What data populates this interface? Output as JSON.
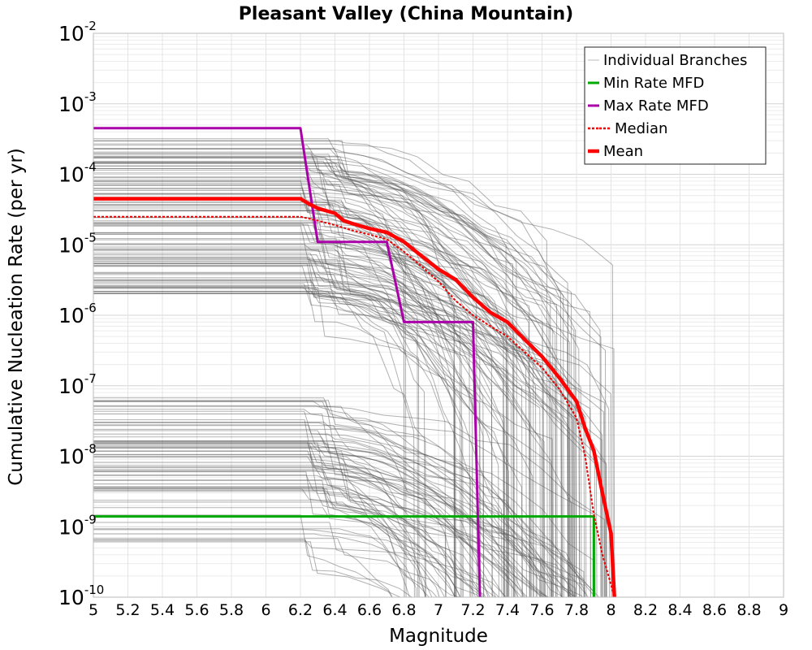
{
  "chart_data": {
    "type": "line",
    "title": "Pleasant Valley (China Mountain)",
    "xlabel": "Magnitude",
    "ylabel": "Cumulative Nucleation Rate (per yr)",
    "xlim": [
      5,
      9
    ],
    "ylim": [
      1e-10,
      0.01
    ],
    "yscale": "log",
    "grid": true,
    "legend_position": "top-right",
    "x_ticks": [
      5,
      5.2,
      5.4,
      5.6,
      5.8,
      6,
      6.2,
      6.4,
      6.6,
      6.8,
      7,
      7.2,
      7.4,
      7.6,
      7.8,
      8,
      8.2,
      8.4,
      8.6,
      8.8,
      9
    ],
    "x_tick_labels": [
      "5",
      "5.2",
      "5.4",
      "5.6",
      "5.8",
      "6",
      "6.2",
      "6.4",
      "6.6",
      "6.8",
      "7",
      "7.2",
      "7.4",
      "7.6",
      "7.8",
      "8",
      "8.2",
      "8.4",
      "8.6",
      "8.8",
      "9"
    ],
    "y_ticks": [
      {
        "value": 0.01,
        "base": "10",
        "exp": "-2"
      },
      {
        "value": 0.001,
        "base": "10",
        "exp": "-3"
      },
      {
        "value": 0.0001,
        "base": "10",
        "exp": "-4"
      },
      {
        "value": 1e-05,
        "base": "10",
        "exp": "-5"
      },
      {
        "value": 1e-06,
        "base": "10",
        "exp": "-6"
      },
      {
        "value": 1e-07,
        "base": "10",
        "exp": "-7"
      },
      {
        "value": 1e-08,
        "base": "10",
        "exp": "-8"
      },
      {
        "value": 1e-09,
        "base": "10",
        "exp": "-9"
      },
      {
        "value": 1e-10,
        "base": "10",
        "exp": "-10"
      }
    ],
    "legend": [
      {
        "label": "Individual Branches",
        "color": "#bbbbbb",
        "style": "thin"
      },
      {
        "label": "Min Rate MFD",
        "color": "#00aa00",
        "style": "solid"
      },
      {
        "label": "Max Rate MFD",
        "color": "#aa00aa",
        "style": "solid"
      },
      {
        "label": "Median",
        "color": "#ee0000",
        "style": "dotted"
      },
      {
        "label": "Mean",
        "color": "#ff0000",
        "style": "thick"
      }
    ],
    "branch_color": "#555555",
    "branch_groups": {
      "upper": {
        "count": 110,
        "rate_range": [
          2e-06,
          0.00035
        ],
        "drop_range": [
          6.2,
          6.45
        ],
        "mmax_range": [
          6.75,
          8.02
        ]
      },
      "lower": {
        "count": 70,
        "rate_range": [
          6e-10,
          8e-08
        ],
        "drop_range": [
          6.2,
          6.45
        ],
        "mmax_range": [
          6.75,
          8.02
        ]
      }
    },
    "series": [
      {
        "name": "Min Rate MFD",
        "color": "#00aa00",
        "x": [
          5.0,
          7.9,
          7.9
        ],
        "y": [
          1.4e-09,
          1.4e-09,
          1e-10
        ]
      },
      {
        "name": "Max Rate MFD",
        "color": "#aa00aa",
        "x": [
          5.0,
          6.2,
          6.3,
          6.7,
          6.8,
          7.2,
          7.24
        ],
        "y": [
          0.00045,
          0.00045,
          1.1e-05,
          1.1e-05,
          8e-07,
          8e-07,
          1e-10
        ]
      },
      {
        "name": "Median",
        "color": "#ee0000",
        "x": [
          5.0,
          6.2,
          6.3,
          6.4,
          6.5,
          6.6,
          6.7,
          6.8,
          6.9,
          7.0,
          7.1,
          7.2,
          7.3,
          7.4,
          7.5,
          7.6,
          7.7,
          7.8,
          7.85,
          7.9,
          7.95,
          8.0,
          8.02
        ],
        "y": [
          2.5e-05,
          2.5e-05,
          2.2e-05,
          1.9e-05,
          1.6e-05,
          1.4e-05,
          1.2e-05,
          8e-06,
          5e-06,
          3e-06,
          1.6e-06,
          1e-06,
          7e-07,
          5e-07,
          3e-07,
          1.8e-07,
          9e-08,
          3.5e-08,
          1e-08,
          1.5e-09,
          4e-10,
          1.5e-10,
          1e-10
        ]
      },
      {
        "name": "Mean",
        "color": "#ff0000",
        "x": [
          5.0,
          6.2,
          6.25,
          6.3,
          6.4,
          6.45,
          6.5,
          6.6,
          6.7,
          6.8,
          6.9,
          7.0,
          7.1,
          7.2,
          7.3,
          7.4,
          7.5,
          7.6,
          7.7,
          7.8,
          7.85,
          7.9,
          7.95,
          8.0,
          8.02
        ],
        "y": [
          4.5e-05,
          4.5e-05,
          3.8e-05,
          3.3e-05,
          2.8e-05,
          2.2e-05,
          2e-05,
          1.7e-05,
          1.5e-05,
          1.1e-05,
          7e-06,
          4.5e-06,
          3.2e-06,
          1.8e-06,
          1.1e-06,
          8e-07,
          4.5e-07,
          2.6e-07,
          1.3e-07,
          6e-08,
          2.5e-08,
          1.2e-08,
          3e-09,
          8e-10,
          1e-10
        ]
      }
    ]
  }
}
